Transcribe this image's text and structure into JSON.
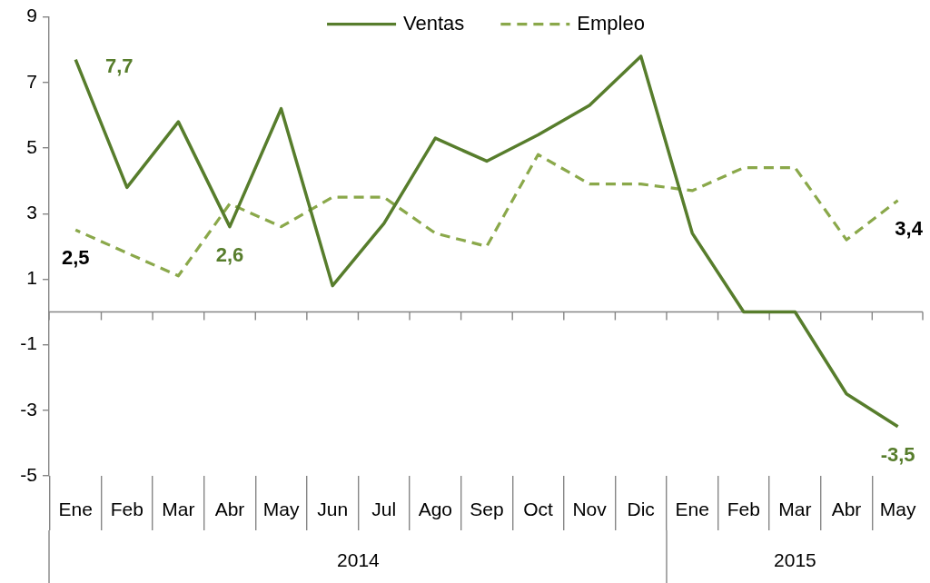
{
  "chart_data": {
    "type": "line",
    "x": [
      "2014-01",
      "2014-02",
      "2014-03",
      "2014-04",
      "2014-05",
      "2014-06",
      "2014-07",
      "2014-08",
      "2014-09",
      "2014-10",
      "2014-11",
      "2014-12",
      "2015-01",
      "2015-02",
      "2015-03",
      "2015-04",
      "2015-05"
    ],
    "xlim": [
      "2013-12-16",
      "2015-05-16"
    ],
    "xticks": [
      {
        "value": "2014-01",
        "label": "Ene"
      },
      {
        "value": "2014-02",
        "label": "Feb"
      },
      {
        "value": "2014-03",
        "label": "Mar"
      },
      {
        "value": "2014-04",
        "label": "Abr"
      },
      {
        "value": "2014-05",
        "label": "May"
      },
      {
        "value": "2014-06",
        "label": "Jun"
      },
      {
        "value": "2014-07",
        "label": "Jul"
      },
      {
        "value": "2014-08",
        "label": "Ago"
      },
      {
        "value": "2014-09",
        "label": "Sep"
      },
      {
        "value": "2014-10",
        "label": "Oct"
      },
      {
        "value": "2014-11",
        "label": "Nov"
      },
      {
        "value": "2014-12",
        "label": "Dic"
      },
      {
        "value": "2015-01",
        "label": "Ene"
      },
      {
        "value": "2015-02",
        "label": "Feb"
      },
      {
        "value": "2015-03",
        "label": "Mar"
      },
      {
        "value": "2015-04",
        "label": "Abr"
      },
      {
        "value": "2015-05",
        "label": "May"
      }
    ],
    "x2lim": [
      "2013-12-16",
      "2015-05-16"
    ],
    "x2ticks": [
      {
        "value": "2014-06-16",
        "label": "2014"
      },
      {
        "value": "2015-03",
        "label": "2015"
      }
    ],
    "ylim": [
      -5,
      9
    ],
    "yticks": [
      -5,
      -3,
      -1,
      1,
      3,
      5,
      7,
      9
    ],
    "series": [
      {
        "name": "Ventas",
        "color": "#577d2c",
        "line_style": "solid",
        "values": [
          7.7,
          3.8,
          5.8,
          2.6,
          6.2,
          0.8,
          2.7,
          5.3,
          4.6,
          5.4,
          6.3,
          7.8,
          2.4,
          0,
          0,
          -2.5,
          -3.5
        ],
        "value_labels": [
          "7,7",
          null,
          null,
          "2,6",
          null,
          null,
          null,
          null,
          null,
          null,
          null,
          null,
          null,
          null,
          null,
          null,
          "-3,5"
        ]
      },
      {
        "name": "Empleo",
        "color": "#8aa84a",
        "line_style": "dashed",
        "values": [
          2.5,
          1.8,
          1.1,
          3.3,
          2.6,
          3.5,
          3.5,
          2.4,
          2.0,
          4.8,
          3.9,
          3.9,
          3.7,
          4.4,
          4.4,
          2.2,
          3.4
        ],
        "value_labels": [
          "2,5",
          null,
          null,
          null,
          null,
          null,
          null,
          null,
          null,
          null,
          null,
          null,
          null,
          null,
          null,
          null,
          "3,4"
        ]
      }
    ],
    "grid": false,
    "legend": "top",
    "marker": "none"
  }
}
